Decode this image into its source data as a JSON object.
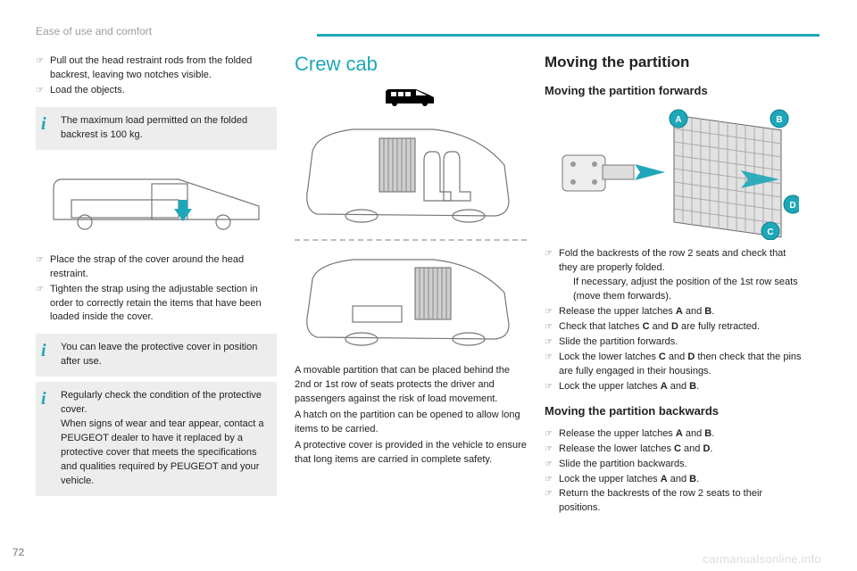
{
  "header": {
    "section": "Ease of use and comfort"
  },
  "page_number": "72",
  "watermark": "carmanualsonline.info",
  "col1": {
    "top_bullets": [
      "Pull out the head restraint rods from the folded backrest, leaving two notches visible.",
      "Load the objects."
    ],
    "info1": "The maximum load permitted on the folded backrest is 100 kg.",
    "mid_bullets": [
      "Place the strap of the cover around the head restraint.",
      "Tighten the strap using the adjustable section in order to correctly retain the items that have been loaded inside the cover."
    ],
    "info2": "You can leave the protective cover in position after use.",
    "info3": "Regularly check the condition of the protective cover.\nWhen signs of wear and tear appear, contact a PEUGEOT dealer to have it replaced by a protective cover that meets the specifications and qualities required by PEUGEOT and your vehicle."
  },
  "col2": {
    "title": "Crew cab",
    "para1": "A movable partition that can be placed behind the 2nd or 1st row of seats protects the driver and passengers against the risk of load movement.",
    "para2": "A hatch on the partition can be opened to allow long items to be carried.",
    "para3": "A protective cover is provided in the vehicle to ensure that long items are carried in complete safety."
  },
  "col3": {
    "h2": "Moving the partition",
    "h3a": "Moving the partition forwards",
    "bullets_a": [
      {
        "t": "Fold the backrests of the row 2 seats and check that they are properly folded.",
        "indent": " If necessary, adjust the position of the 1st row seats (move them forwards)."
      },
      {
        "t": "Release the upper latches ",
        "b": [
          "A",
          "B"
        ],
        "tail": "."
      },
      {
        "t": "Check that latches ",
        "b": [
          "C",
          "D"
        ],
        "tail": " are fully retracted."
      },
      {
        "t": "Slide the partition forwards."
      },
      {
        "t": "Lock the lower latches ",
        "b": [
          "C",
          "D"
        ],
        "tail": " then check that the pins are fully engaged in their housings."
      },
      {
        "t": "Lock the upper latches ",
        "b": [
          "A",
          "B"
        ],
        "tail": "."
      }
    ],
    "h3b": "Moving the partition backwards",
    "bullets_b": [
      {
        "t": "Release the upper latches ",
        "b": [
          "A",
          "B"
        ],
        "tail": "."
      },
      {
        "t": "Release the lower latches ",
        "b": [
          "C",
          "D"
        ],
        "tail": "."
      },
      {
        "t": "Slide the partition backwards."
      },
      {
        "t": "Lock the upper latches ",
        "b": [
          "A",
          "B"
        ],
        "tail": "."
      },
      {
        "t": "Return the backrests of the row 2 seats to their positions."
      }
    ],
    "labels": {
      "A": "A",
      "B": "B",
      "C": "C",
      "D": "D"
    }
  }
}
